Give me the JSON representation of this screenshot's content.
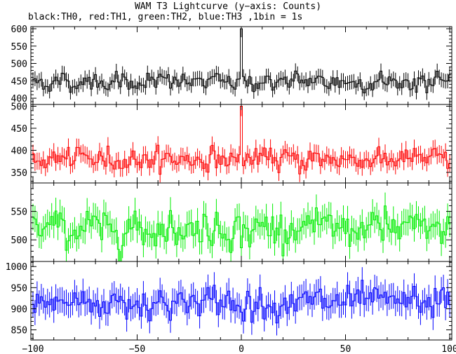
{
  "title": "WAM T3 Lightcurve (y−axis: Counts)",
  "subtitle": "black:TH0, red:TH1, green:TH2, blue:TH3 ,1bin = 1s",
  "chart_data": {
    "type": "line",
    "style": "step-with-error-bars",
    "stacked_panels": true,
    "x_range": [
      -101,
      101
    ],
    "x_ticks": [
      -100,
      -50,
      0,
      50,
      100
    ],
    "x_tick_labels": [
      "−100",
      "−50",
      "0",
      "50",
      "100"
    ],
    "bin_width": 1,
    "panels": [
      {
        "name": "TH0",
        "color": "#000000",
        "y_range": [
          382,
          606
        ],
        "y_ticks": [
          400,
          450,
          500,
          550,
          600
        ],
        "baseline": 447,
        "scatter": 22,
        "peak": {
          "x": 0,
          "value": 600
        }
      },
      {
        "name": "TH1",
        "color": "#ff0000",
        "y_range": [
          326,
          504
        ],
        "y_ticks": [
          350,
          400,
          450,
          500
        ],
        "baseline": 380,
        "scatter": 20,
        "peak": {
          "x": 0,
          "value": 500
        }
      },
      {
        "name": "TH2",
        "color": "#00ee00",
        "y_range": [
          462,
          600
        ],
        "y_ticks": [
          500,
          550
        ],
        "baseline": 520,
        "scatter": 25,
        "peak": null
      },
      {
        "name": "TH3",
        "color": "#0000ff",
        "y_range": [
          826,
          1012
        ],
        "y_ticks": [
          850,
          900,
          950,
          1000
        ],
        "baseline": 915,
        "scatter": 30,
        "peak": null
      }
    ]
  }
}
